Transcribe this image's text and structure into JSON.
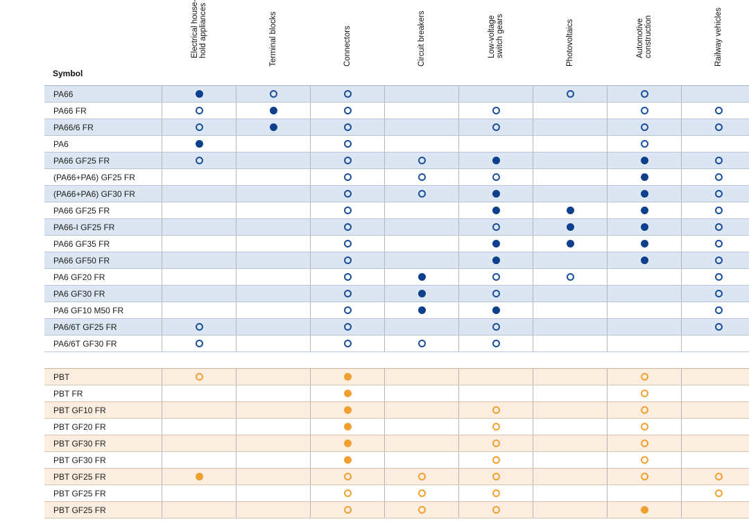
{
  "table": {
    "symbol_header": "Symbol",
    "columns": [
      {
        "id": "household",
        "label": "Electrical house-\nhold appliances"
      },
      {
        "id": "terminal",
        "label": "Terminal blocks"
      },
      {
        "id": "connectors",
        "label": "Connectors"
      },
      {
        "id": "breakers",
        "label": "Circuit breakers"
      },
      {
        "id": "lowvoltage",
        "label": "Low-voltage\nswitch gears"
      },
      {
        "id": "photovoltaics",
        "label": "Photovoltaics"
      },
      {
        "id": "automotive",
        "label": "Automotive\nconstruction"
      },
      {
        "id": "railway",
        "label": "Railway vehicles"
      }
    ],
    "legend_colors": {
      "pa_filled": "#0c3f8c",
      "pa_open": "#1a4f9c",
      "pbt": "#f0a030",
      "pa_shade": "#dce6f2",
      "pbt_shade": "#fbeee0"
    },
    "groups": [
      {
        "id": "pa",
        "color": "blue",
        "rows": [
          {
            "symbol": "PA66",
            "marks": [
              "filled",
              "open",
              "open",
              "",
              "",
              "open",
              "open",
              ""
            ]
          },
          {
            "symbol": "PA66 FR",
            "marks": [
              "open",
              "filled",
              "open",
              "",
              "open",
              "",
              "open",
              "open"
            ]
          },
          {
            "symbol": "PA66/6 FR",
            "marks": [
              "open",
              "filled",
              "open",
              "",
              "open",
              "",
              "open",
              "open"
            ]
          },
          {
            "symbol": "PA6",
            "marks": [
              "filled",
              "",
              "open",
              "",
              "",
              "",
              "open",
              ""
            ]
          },
          {
            "symbol": "PA66 GF25 FR",
            "marks": [
              "open",
              "",
              "open",
              "open",
              "filled",
              "",
              "filled",
              "open"
            ]
          },
          {
            "symbol": "(PA66+PA6) GF25 FR",
            "marks": [
              "",
              "",
              "open",
              "open",
              "open",
              "",
              "filled",
              "open"
            ]
          },
          {
            "symbol": "(PA66+PA6) GF30 FR",
            "marks": [
              "",
              "",
              "open",
              "open",
              "filled",
              "",
              "filled",
              "open"
            ]
          },
          {
            "symbol": "PA66 GF25 FR",
            "marks": [
              "",
              "",
              "open",
              "",
              "filled",
              "filled",
              "filled",
              "open"
            ]
          },
          {
            "symbol": "PA66-I GF25 FR",
            "marks": [
              "",
              "",
              "open",
              "",
              "open",
              "filled",
              "filled",
              "open"
            ]
          },
          {
            "symbol": "PA66 GF35 FR",
            "marks": [
              "",
              "",
              "open",
              "",
              "filled",
              "filled",
              "filled",
              "open"
            ]
          },
          {
            "symbol": "PA66 GF50 FR",
            "marks": [
              "",
              "",
              "open",
              "",
              "filled",
              "",
              "filled",
              "open"
            ]
          },
          {
            "symbol": "PA6 GF20 FR",
            "marks": [
              "",
              "",
              "open",
              "filled",
              "open",
              "open",
              "",
              "open"
            ]
          },
          {
            "symbol": "PA6 GF30 FR",
            "marks": [
              "",
              "",
              "open",
              "filled",
              "open",
              "",
              "",
              "open"
            ]
          },
          {
            "symbol": "PA6 GF10 M50 FR",
            "marks": [
              "",
              "",
              "open",
              "filled",
              "filled",
              "",
              "",
              "open"
            ]
          },
          {
            "symbol": "PA6/6T GF25 FR",
            "marks": [
              "open",
              "",
              "open",
              "",
              "open",
              "",
              "",
              "open"
            ]
          },
          {
            "symbol": "PA6/6T GF30 FR",
            "marks": [
              "open",
              "",
              "open",
              "open",
              "open",
              "",
              "",
              ""
            ]
          }
        ]
      },
      {
        "id": "pbt",
        "color": "orange",
        "rows": [
          {
            "symbol": "PBT",
            "marks": [
              "open",
              "",
              "filled",
              "",
              "",
              "",
              "open",
              ""
            ]
          },
          {
            "symbol": "PBT FR",
            "marks": [
              "",
              "",
              "filled",
              "",
              "",
              "",
              "open",
              ""
            ]
          },
          {
            "symbol": "PBT GF10 FR",
            "marks": [
              "",
              "",
              "filled",
              "",
              "open",
              "",
              "open",
              ""
            ]
          },
          {
            "symbol": "PBT GF20 FR",
            "marks": [
              "",
              "",
              "filled",
              "",
              "open",
              "",
              "open",
              ""
            ]
          },
          {
            "symbol": "PBT GF30 FR",
            "marks": [
              "",
              "",
              "filled",
              "",
              "open",
              "",
              "open",
              ""
            ]
          },
          {
            "symbol": "PBT GF30 FR",
            "marks": [
              "",
              "",
              "filled",
              "",
              "open",
              "",
              "open",
              ""
            ]
          },
          {
            "symbol": "PBT GF25 FR",
            "marks": [
              "filled",
              "",
              "open",
              "open",
              "open",
              "",
              "open",
              "open"
            ]
          },
          {
            "symbol": "PBT GF25 FR",
            "marks": [
              "",
              "",
              "open",
              "open",
              "open",
              "",
              "",
              "open"
            ]
          },
          {
            "symbol": "PBT GF25 FR",
            "marks": [
              "",
              "",
              "open",
              "open",
              "open",
              "",
              "filled",
              ""
            ]
          }
        ]
      }
    ]
  }
}
